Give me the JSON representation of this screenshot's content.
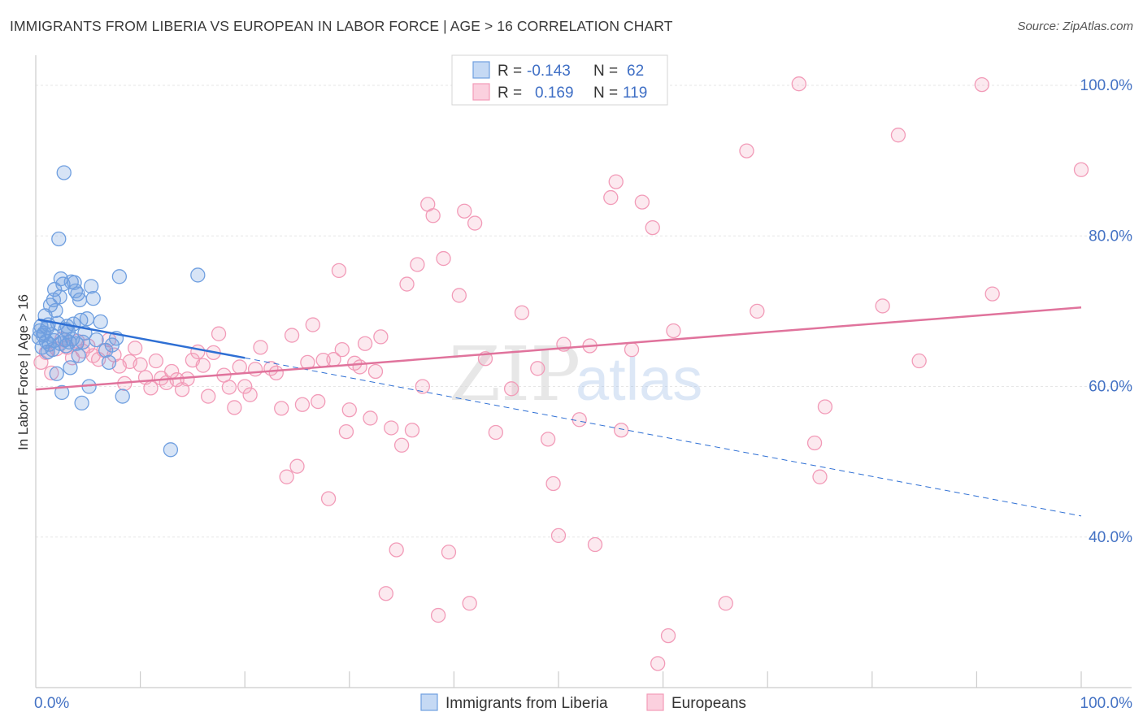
{
  "header": {
    "title": "IMMIGRANTS FROM LIBERIA VS EUROPEAN IN LABOR FORCE | AGE > 16 CORRELATION CHART",
    "source": "Source: ZipAtlas.com"
  },
  "watermark": {
    "zip": "ZIP",
    "atlas": "atlas"
  },
  "chart_data": {
    "type": "scatter",
    "title": "IMMIGRANTS FROM LIBERIA VS EUROPEAN IN LABOR FORCE | AGE > 16 CORRELATION CHART",
    "xlabel": "",
    "ylabel": "In Labor Force | Age > 16",
    "xlim": [
      0,
      100
    ],
    "ylim": [
      20,
      104
    ],
    "x_tick_labels": [
      {
        "value": 0,
        "label": "0.0%"
      },
      {
        "value": 100,
        "label": "100.0%"
      }
    ],
    "y_tick_labels": [
      {
        "value": 40,
        "label": "40.0%"
      },
      {
        "value": 60,
        "label": "60.0%"
      },
      {
        "value": 80,
        "label": "80.0%"
      },
      {
        "value": 100,
        "label": "100.0%"
      }
    ],
    "grid": true,
    "legend_position": "top-center",
    "stats": [
      {
        "r_label": "R =",
        "r_value": "-0.143",
        "n_label": "N =",
        "n_value": "62"
      },
      {
        "r_label": "R =",
        "r_value": "0.169",
        "n_label": "N =",
        "n_value": "119"
      }
    ],
    "series": [
      {
        "name": "Immigrants from Liberia",
        "color": "#6f9fe0",
        "line_color": "#2e6fd4",
        "trend": {
          "x0": 0.2,
          "y0": 68.9,
          "x1": 20,
          "y1": 63.8,
          "dash_to_x": 100,
          "dash_to_y": 42.8
        },
        "points": [
          [
            0.3,
            66.5
          ],
          [
            0.5,
            68.0
          ],
          [
            0.6,
            65.2
          ],
          [
            0.8,
            67.1
          ],
          [
            0.9,
            69.4
          ],
          [
            1.0,
            66.0
          ],
          [
            1.1,
            67.8
          ],
          [
            1.2,
            68.2
          ],
          [
            1.3,
            65.6
          ],
          [
            1.4,
            70.8
          ],
          [
            1.5,
            66.9
          ],
          [
            1.6,
            64.9
          ],
          [
            1.7,
            71.5
          ],
          [
            1.8,
            72.9
          ],
          [
            1.9,
            70.1
          ],
          [
            2.0,
            61.7
          ],
          [
            2.1,
            68.4
          ],
          [
            2.2,
            79.6
          ],
          [
            2.3,
            71.9
          ],
          [
            2.4,
            74.3
          ],
          [
            2.5,
            59.2
          ],
          [
            2.6,
            73.6
          ],
          [
            2.7,
            88.4
          ],
          [
            2.8,
            66.2
          ],
          [
            2.9,
            65.4
          ],
          [
            3.0,
            68.0
          ],
          [
            3.1,
            67.3
          ],
          [
            3.2,
            65.9
          ],
          [
            3.3,
            62.5
          ],
          [
            3.4,
            73.9
          ],
          [
            3.5,
            66.3
          ],
          [
            3.6,
            68.3
          ],
          [
            3.7,
            73.8
          ],
          [
            3.8,
            72.7
          ],
          [
            3.9,
            65.7
          ],
          [
            4.0,
            72.3
          ],
          [
            4.1,
            64.1
          ],
          [
            4.2,
            71.5
          ],
          [
            4.3,
            68.8
          ],
          [
            4.4,
            57.8
          ],
          [
            4.5,
            65.9
          ],
          [
            4.7,
            67.1
          ],
          [
            4.9,
            69.0
          ],
          [
            5.1,
            60.0
          ],
          [
            5.3,
            73.3
          ],
          [
            5.5,
            71.7
          ],
          [
            5.8,
            66.2
          ],
          [
            6.2,
            68.6
          ],
          [
            6.7,
            64.8
          ],
          [
            7.0,
            63.2
          ],
          [
            7.3,
            65.5
          ],
          [
            7.7,
            66.4
          ],
          [
            8.0,
            74.6
          ],
          [
            8.3,
            58.7
          ],
          [
            12.9,
            51.6
          ],
          [
            15.5,
            74.8
          ],
          [
            0.4,
            67.4
          ],
          [
            0.7,
            66.8
          ],
          [
            1.15,
            64.6
          ],
          [
            1.75,
            66.1
          ],
          [
            2.35,
            65.7
          ],
          [
            2.85,
            67.6
          ]
        ]
      },
      {
        "name": "Europeans",
        "color": "#f29bb8",
        "line_color": "#e0739c",
        "trend": {
          "x0": 0,
          "y0": 59.6,
          "x1": 100,
          "y1": 70.5
        },
        "points": [
          [
            0.5,
            63.2
          ],
          [
            1.0,
            64.5
          ],
          [
            1.5,
            61.8
          ],
          [
            2.0,
            65.0
          ],
          [
            2.5,
            66.3
          ],
          [
            3.0,
            65.2
          ],
          [
            3.5,
            63.8
          ],
          [
            4.0,
            66.0
          ],
          [
            4.5,
            64.7
          ],
          [
            5.0,
            65.4
          ],
          [
            5.5,
            64.1
          ],
          [
            6.0,
            63.6
          ],
          [
            6.5,
            64.8
          ],
          [
            7.0,
            66.2
          ],
          [
            7.5,
            64.2
          ],
          [
            8.0,
            62.7
          ],
          [
            8.5,
            60.4
          ],
          [
            9.0,
            63.3
          ],
          [
            9.5,
            65.1
          ],
          [
            10.0,
            62.9
          ],
          [
            10.5,
            61.2
          ],
          [
            11.0,
            59.8
          ],
          [
            11.5,
            63.4
          ],
          [
            12.0,
            61.1
          ],
          [
            12.5,
            60.5
          ],
          [
            13.0,
            62.0
          ],
          [
            13.5,
            60.9
          ],
          [
            14.0,
            59.6
          ],
          [
            14.5,
            61.0
          ],
          [
            15.0,
            63.5
          ],
          [
            15.5,
            64.6
          ],
          [
            16.0,
            62.8
          ],
          [
            16.5,
            58.7
          ],
          [
            17.0,
            64.5
          ],
          [
            17.5,
            67.0
          ],
          [
            18.0,
            61.5
          ],
          [
            18.5,
            59.9
          ],
          [
            19.0,
            57.2
          ],
          [
            19.5,
            62.6
          ],
          [
            20.0,
            60.0
          ],
          [
            20.5,
            58.9
          ],
          [
            21.0,
            62.3
          ],
          [
            21.5,
            65.2
          ],
          [
            22.5,
            62.4
          ],
          [
            23.0,
            61.8
          ],
          [
            23.5,
            57.1
          ],
          [
            24.0,
            48.0
          ],
          [
            24.5,
            66.8
          ],
          [
            25.0,
            49.4
          ],
          [
            25.5,
            57.6
          ],
          [
            26.0,
            63.2
          ],
          [
            26.5,
            68.2
          ],
          [
            27.0,
            58.0
          ],
          [
            27.5,
            63.5
          ],
          [
            28.0,
            45.1
          ],
          [
            28.5,
            63.6
          ],
          [
            29.0,
            75.4
          ],
          [
            29.3,
            64.9
          ],
          [
            29.7,
            54.0
          ],
          [
            30.0,
            56.9
          ],
          [
            30.5,
            63.1
          ],
          [
            31.0,
            62.6
          ],
          [
            31.5,
            65.7
          ],
          [
            32.0,
            55.8
          ],
          [
            32.5,
            62.0
          ],
          [
            33.0,
            66.6
          ],
          [
            33.5,
            32.5
          ],
          [
            34.0,
            54.5
          ],
          [
            34.5,
            38.3
          ],
          [
            35.0,
            52.2
          ],
          [
            35.5,
            73.6
          ],
          [
            36.0,
            54.2
          ],
          [
            36.5,
            76.2
          ],
          [
            37.0,
            60.0
          ],
          [
            37.5,
            84.2
          ],
          [
            38.0,
            82.7
          ],
          [
            38.5,
            29.6
          ],
          [
            39.0,
            77.0
          ],
          [
            39.5,
            38.0
          ],
          [
            40.5,
            72.1
          ],
          [
            41.0,
            83.3
          ],
          [
            41.5,
            31.2
          ],
          [
            42.0,
            81.7
          ],
          [
            43.0,
            63.7
          ],
          [
            44.0,
            53.9
          ],
          [
            45.5,
            59.7
          ],
          [
            46.5,
            69.8
          ],
          [
            47.0,
            100.0
          ],
          [
            48.0,
            62.4
          ],
          [
            49.0,
            53.0
          ],
          [
            49.5,
            47.1
          ],
          [
            50.0,
            40.2
          ],
          [
            50.5,
            65.6
          ],
          [
            51.0,
            98.6
          ],
          [
            52.0,
            55.6
          ],
          [
            53.0,
            65.4
          ],
          [
            53.5,
            39.0
          ],
          [
            55.0,
            85.1
          ],
          [
            55.5,
            87.2
          ],
          [
            56.0,
            54.2
          ],
          [
            57.0,
            64.9
          ],
          [
            58.0,
            84.5
          ],
          [
            59.0,
            81.1
          ],
          [
            59.5,
            23.2
          ],
          [
            60.5,
            26.9
          ],
          [
            61.0,
            67.4
          ],
          [
            66.0,
            31.2
          ],
          [
            68.0,
            91.3
          ],
          [
            69.0,
            70.0
          ],
          [
            73.0,
            100.2
          ],
          [
            74.5,
            52.5
          ],
          [
            75.0,
            48.0
          ],
          [
            75.5,
            57.3
          ],
          [
            81.0,
            70.7
          ],
          [
            82.5,
            93.4
          ],
          [
            84.5,
            63.4
          ],
          [
            90.5,
            100.1
          ],
          [
            91.5,
            72.3
          ],
          [
            100.0,
            88.8
          ]
        ]
      }
    ]
  }
}
